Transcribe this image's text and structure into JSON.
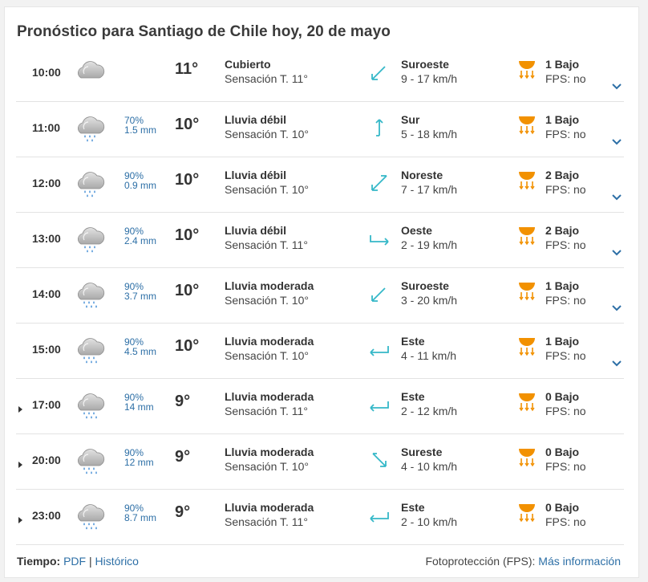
{
  "title": "Pronóstico para Santiago de Chile hoy, 20 de mayo",
  "rows": [
    {
      "time": "10:00",
      "icon": "cloudy-icon",
      "prob": "",
      "mm": "",
      "temp": "11°",
      "cond": "Cubierto",
      "feels": "Sensación T. 11°",
      "wind_dir": "Suroeste",
      "wind_icon": "arrow-southwest-icon",
      "wind_speed": "9 - 17 km/h",
      "uv": "1 Bajo",
      "fps": "FPS: no",
      "expand": "chevron"
    },
    {
      "time": "11:00",
      "icon": "light-rain-icon",
      "prob": "70%",
      "mm": "1.5 mm",
      "temp": "10°",
      "cond": "Lluvia débil",
      "feels": "Sensación T. 10°",
      "wind_dir": "Sur",
      "wind_icon": "arrow-south-icon",
      "wind_speed": "5 - 18 km/h",
      "uv": "1 Bajo",
      "fps": "FPS: no",
      "expand": "chevron"
    },
    {
      "time": "12:00",
      "icon": "light-rain-icon",
      "prob": "90%",
      "mm": "0.9 mm",
      "temp": "10°",
      "cond": "Lluvia débil",
      "feels": "Sensación T. 10°",
      "wind_dir": "Noreste",
      "wind_icon": "arrow-northeast-icon",
      "wind_speed": "7 - 17 km/h",
      "uv": "2 Bajo",
      "fps": "FPS: no",
      "expand": "chevron"
    },
    {
      "time": "13:00",
      "icon": "light-rain-icon",
      "prob": "90%",
      "mm": "2.4 mm",
      "temp": "10°",
      "cond": "Lluvia débil",
      "feels": "Sensación T. 11°",
      "wind_dir": "Oeste",
      "wind_icon": "arrow-west-icon",
      "wind_speed": "2 - 19 km/h",
      "uv": "2 Bajo",
      "fps": "FPS: no",
      "expand": "chevron"
    },
    {
      "time": "14:00",
      "icon": "moderate-rain-icon",
      "prob": "90%",
      "mm": "3.7 mm",
      "temp": "10°",
      "cond": "Lluvia moderada",
      "feels": "Sensación T. 10°",
      "wind_dir": "Suroeste",
      "wind_icon": "arrow-southwest-icon",
      "wind_speed": "3 - 20 km/h",
      "uv": "1 Bajo",
      "fps": "FPS: no",
      "expand": "chevron"
    },
    {
      "time": "15:00",
      "icon": "moderate-rain-icon",
      "prob": "90%",
      "mm": "4.5 mm",
      "temp": "10°",
      "cond": "Lluvia moderada",
      "feels": "Sensación T. 10°",
      "wind_dir": "Este",
      "wind_icon": "arrow-east-icon",
      "wind_speed": "4 - 11 km/h",
      "uv": "1 Bajo",
      "fps": "FPS: no",
      "expand": "chevron"
    },
    {
      "time": "17:00",
      "icon": "moderate-rain-icon",
      "prob": "90%",
      "mm": "14 mm",
      "temp": "9°",
      "cond": "Lluvia moderada",
      "feels": "Sensación T. 11°",
      "wind_dir": "Este",
      "wind_icon": "arrow-east-icon",
      "wind_speed": "2 - 12 km/h",
      "uv": "0 Bajo",
      "fps": "FPS: no",
      "expand": "triangle"
    },
    {
      "time": "20:00",
      "icon": "moderate-rain-icon",
      "prob": "90%",
      "mm": "12 mm",
      "temp": "9°",
      "cond": "Lluvia moderada",
      "feels": "Sensación T. 10°",
      "wind_dir": "Sureste",
      "wind_icon": "arrow-southeast-icon",
      "wind_speed": "4 - 10 km/h",
      "uv": "0 Bajo",
      "fps": "FPS: no",
      "expand": "triangle"
    },
    {
      "time": "23:00",
      "icon": "moderate-rain-icon",
      "prob": "90%",
      "mm": "8.7 mm",
      "temp": "9°",
      "cond": "Lluvia moderada",
      "feels": "Sensación T. 11°",
      "wind_dir": "Este",
      "wind_icon": "arrow-east-icon",
      "wind_speed": "2 - 10 km/h",
      "uv": "0 Bajo",
      "fps": "FPS: no",
      "expand": "triangle"
    }
  ],
  "footer": {
    "label": "Tiempo:",
    "pdf": "PDF",
    "separator": "|",
    "historico": "Histórico",
    "fps_text": "Fotoprotección (FPS):",
    "fps_link": "Más información"
  },
  "colors": {
    "accent": "#2d6fa6",
    "wind": "#35b8c8",
    "sun": "#f29100"
  }
}
